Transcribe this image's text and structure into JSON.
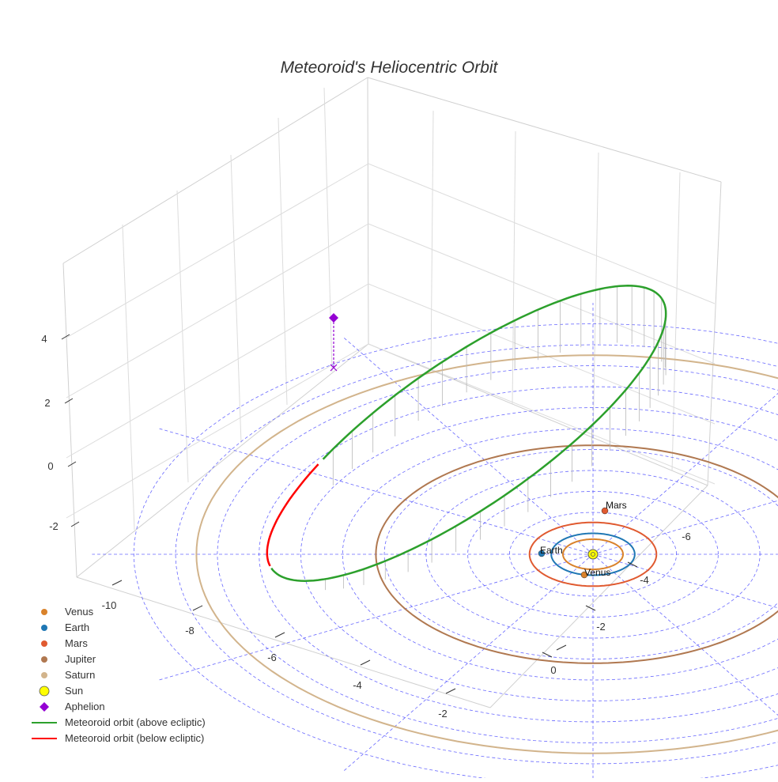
{
  "chart_data": {
    "type": "line",
    "title": "Meteoroid's Heliocentric Orbit",
    "axes": {
      "x": {
        "ticks": [
          -10,
          -8,
          -6,
          -4,
          -2,
          0
        ]
      },
      "y": {
        "ticks": [
          0,
          -2,
          -4,
          -6
        ]
      },
      "z": {
        "ticks": [
          -2,
          0,
          2,
          4
        ]
      }
    },
    "planets": [
      {
        "name": "Venus",
        "color": "#d9822b",
        "orbit_radius_au": 0.72,
        "position": [
          -0.13,
          -0.71,
          0
        ]
      },
      {
        "name": "Earth",
        "color": "#1f77b4",
        "orbit_radius_au": 1.0,
        "position": [
          -0.45,
          0.88,
          0
        ]
      },
      {
        "name": "Mars",
        "color": "#e05a30",
        "orbit_radius_au": 1.52,
        "position": [
          0.29,
          -1.5,
          0
        ]
      },
      {
        "name": "Jupiter",
        "color": "#b07850",
        "orbit_radius_au": 5.2
      },
      {
        "name": "Saturn",
        "color": "#d2b48c",
        "orbit_radius_au": 9.5
      }
    ],
    "sun": {
      "name": "Sun",
      "color": "#ffff00",
      "position": [
        0,
        0,
        0
      ]
    },
    "meteoroid_orbit": {
      "perihelion_au": 0.9,
      "aphelion_au": 7.6,
      "inclination_deg": 38,
      "series": [
        {
          "name": "Meteoroid orbit (above ecliptic)",
          "color": "#2ca02c"
        },
        {
          "name": "Meteoroid orbit (below ecliptic)",
          "color": "#ff0000"
        }
      ],
      "aphelion": {
        "name": "Aphelion",
        "color": "#9400d3"
      }
    },
    "ecliptic_grid_radii_au": [
      2,
      3,
      4,
      5,
      6,
      7,
      8,
      9,
      10,
      11
    ],
    "grid": true,
    "legend": "bottom-left"
  }
}
